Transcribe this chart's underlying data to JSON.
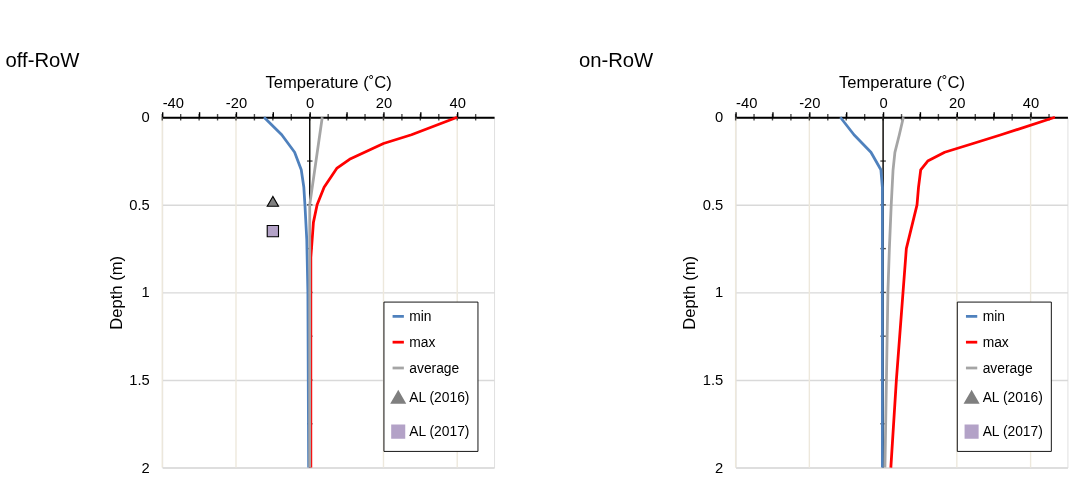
{
  "chart_data": [
    {
      "type": "line",
      "title": "off-RoW",
      "xlabel": "Temperature (˚C)",
      "ylabel": "Depth (m)",
      "xlim": [
        -40,
        50
      ],
      "ylim": [
        2,
        0
      ],
      "xticks": [
        -40,
        {
          "value": -35,
          "label": null
        },
        {
          "value": -30,
          "label": null
        },
        {
          "value": -25,
          "label": null
        },
        -20,
        {
          "value": -15,
          "label": null
        },
        {
          "value": -10,
          "label": null
        },
        {
          "value": -5,
          "label": null
        },
        0,
        {
          "value": 5,
          "label": null
        },
        {
          "value": 10,
          "label": null
        },
        {
          "value": 15,
          "label": null
        },
        20,
        {
          "value": 25,
          "label": null
        },
        {
          "value": 30,
          "label": null
        },
        {
          "value": 35,
          "label": null
        },
        40,
        {
          "value": 45,
          "label": null
        }
      ],
      "yticks": [
        0,
        0.5,
        1,
        1.5,
        2
      ],
      "grid": true,
      "legend": "bottom right",
      "series": [
        {
          "name": "min",
          "type": "line",
          "color": "#4f81bd",
          "x": [
            -12.4,
            -7.6,
            -4.1,
            -2.3,
            -1.6,
            -1.3,
            -0.8,
            -0.5,
            -0.3
          ],
          "values": [
            0,
            0.1,
            0.2,
            0.3,
            0.4,
            0.5,
            0.7,
            1.0,
            2.0
          ]
        },
        {
          "name": "max",
          "type": "line",
          "color": "#ff0000",
          "x": [
            40,
            27.6,
            20,
            10.8,
            7.4,
            3.9,
            2.0,
            1.0,
            0.3,
            0.3
          ],
          "values": [
            0,
            0.1,
            0.15,
            0.24,
            0.29,
            0.4,
            0.5,
            0.6,
            0.8,
            2.0
          ]
        },
        {
          "name": "average",
          "type": "line",
          "color": "#a5a5a5",
          "x": [
            3.4,
            1.7,
            0,
            0
          ],
          "values": [
            0,
            0.25,
            0.5,
            2.0
          ]
        },
        {
          "name": "AL (2016)",
          "type": "scatter",
          "marker": "triangle",
          "color": "#7f7f7f",
          "x": [
            -10
          ],
          "values": [
            0.48
          ]
        },
        {
          "name": "AL (2017)",
          "type": "scatter",
          "marker": "square",
          "color": "#b3a2c7",
          "x": [
            -10
          ],
          "values": [
            0.65
          ]
        }
      ]
    },
    {
      "type": "line",
      "title": "on-RoW",
      "xlabel": "Temperature (˚C)",
      "ylabel": "Depth (m)",
      "xlim": [
        -40,
        50
      ],
      "ylim": [
        2,
        0
      ],
      "xticks": [
        -40,
        {
          "value": -35,
          "label": null
        },
        {
          "value": -30,
          "label": null
        },
        {
          "value": -25,
          "label": null
        },
        -20,
        {
          "value": -15,
          "label": null
        },
        {
          "value": -10,
          "label": null
        },
        {
          "value": -5,
          "label": null
        },
        0,
        {
          "value": 5,
          "label": null
        },
        {
          "value": 10,
          "label": null
        },
        {
          "value": 15,
          "label": null
        },
        20,
        {
          "value": 25,
          "label": null
        },
        {
          "value": 30,
          "label": null
        },
        {
          "value": 35,
          "label": null
        },
        40,
        {
          "value": 45,
          "label": null
        }
      ],
      "yticks": [
        0,
        0.5,
        1,
        1.5,
        2
      ],
      "grid": true,
      "legend": "bottom right",
      "series": [
        {
          "name": "min",
          "type": "line",
          "color": "#4f81bd",
          "x": [
            -11.6,
            -7.9,
            -3.3,
            -0.6,
            -0.2,
            -0.2,
            -0.2
          ],
          "values": [
            0,
            0.1,
            0.2,
            0.3,
            0.4,
            0.5,
            2.0
          ]
        },
        {
          "name": "max",
          "type": "line",
          "color": "#ff0000",
          "x": [
            46.6,
            32,
            24.4,
            16.7,
            12.1,
            10.2,
            9.6,
            9.2,
            6.3,
            5.4,
            3.6,
            2.1
          ],
          "values": [
            0,
            0.1,
            0.15,
            0.2,
            0.25,
            0.3,
            0.4,
            0.5,
            0.75,
            1.0,
            1.5,
            2.0
          ]
        },
        {
          "name": "average",
          "type": "line",
          "color": "#a5a5a5",
          "x": [
            5.5,
            4.4,
            3.2,
            2.7,
            2.2,
            1.7,
            1.3,
            0.5
          ],
          "values": [
            0,
            0.1,
            0.2,
            0.3,
            0.5,
            0.75,
            1.0,
            2.0
          ]
        },
        {
          "name": "AL (2016)",
          "type": "scatter",
          "marker": "triangle",
          "color": "#7f7f7f"
        },
        {
          "name": "AL (2017)",
          "type": "scatter",
          "marker": "square",
          "color": "#b3a2c7"
        }
      ]
    }
  ]
}
